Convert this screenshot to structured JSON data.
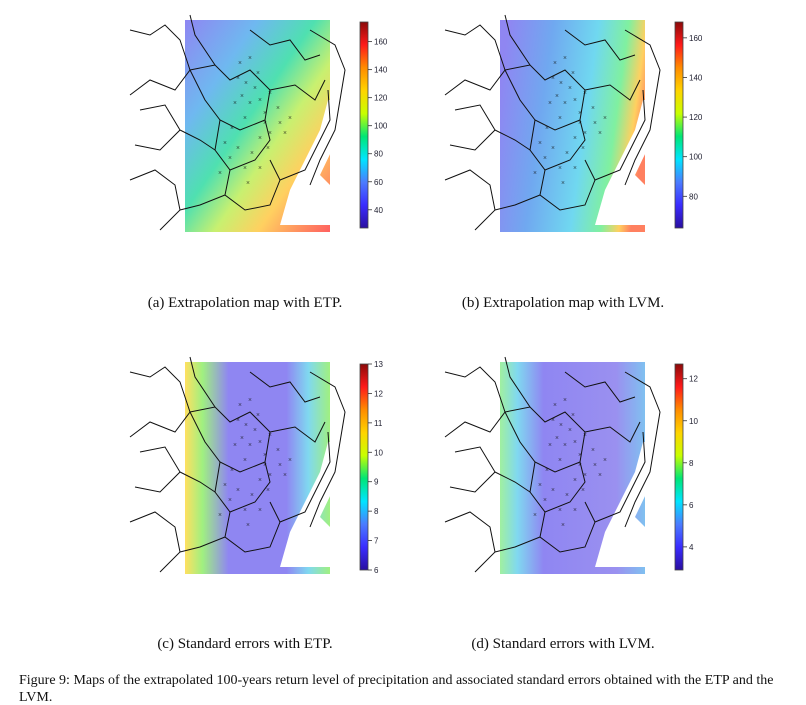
{
  "panels": [
    {
      "id": "a",
      "caption": "(a) Extrapolation map with ETP.",
      "colorbar": {
        "ticks": [
          40,
          60,
          80,
          100,
          120,
          140,
          160
        ],
        "min": 27,
        "max": 174
      },
      "scheme": "etp_level"
    },
    {
      "id": "b",
      "caption": "(b) Extrapolation map with LVM.",
      "colorbar": {
        "ticks": [
          80,
          100,
          120,
          140,
          160
        ],
        "min": 64,
        "max": 168
      },
      "scheme": "lvm_level"
    },
    {
      "id": "c",
      "caption": "(c) Standard errors with ETP.",
      "colorbar": {
        "ticks": [
          6,
          7,
          8,
          9,
          10,
          11,
          12,
          13
        ],
        "min": 6,
        "max": 13
      },
      "scheme": "etp_se"
    },
    {
      "id": "d",
      "caption": "(d) Standard errors with LVM.",
      "colorbar": {
        "ticks": [
          4,
          6,
          8,
          10,
          12
        ],
        "min": 2.9,
        "max": 12.7
      },
      "scheme": "lvm_se"
    }
  ],
  "colors": {
    "palette": [
      "#2a0fa0",
      "#3a2cff",
      "#4b7cff",
      "#00e5ff",
      "#00e676",
      "#c8ff00",
      "#ffd400",
      "#ff8c00",
      "#ff1a1a",
      "#8b0a0a"
    ]
  },
  "figure_caption": "Figure 9: Maps of the extrapolated 100-years return level of precipitation and associated standard errors obtained with the ETP and the LVM."
}
